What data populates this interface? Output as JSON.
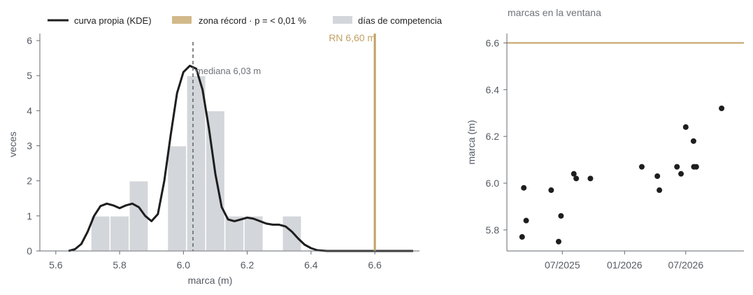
{
  "colors": {
    "kde": "#1e1e1e",
    "record": "#c2a063",
    "record_legend": "#d2b98a",
    "bars": "#d3d6da",
    "median": "#666a70",
    "points": "#1e1e1e",
    "axis": "#666a70",
    "text": "#555b63"
  },
  "chart_data": [
    {
      "type": "bar",
      "legend": {
        "position": "top",
        "entries": [
          {
            "key": "kde",
            "label": "curva propia (KDE)"
          },
          {
            "key": "record",
            "label": "zona récord · p = < 0,01 %"
          },
          {
            "key": "bars",
            "label": "días de competencia"
          }
        ]
      },
      "xlabel": "marca (m)",
      "ylabel": "veces",
      "xlim": [
        5.55,
        6.74
      ],
      "ylim": [
        0,
        6.2
      ],
      "xticks": [
        {
          "v": 5.6,
          "label": "5.6"
        },
        {
          "v": 5.8,
          "label": "5.8"
        },
        {
          "v": 6.0,
          "label": "6.0"
        },
        {
          "v": 6.2,
          "label": "6.2"
        },
        {
          "v": 6.4,
          "label": "6.4"
        },
        {
          "v": 6.6,
          "label": "6.6"
        }
      ],
      "yticks": [
        {
          "v": 0,
          "label": "0"
        },
        {
          "v": 1,
          "label": "1"
        },
        {
          "v": 2,
          "label": "2"
        },
        {
          "v": 3,
          "label": "3"
        },
        {
          "v": 4,
          "label": "4"
        },
        {
          "v": 5,
          "label": "5"
        },
        {
          "v": 6,
          "label": "6"
        }
      ],
      "bin_width": 0.06,
      "bins": [
        {
          "x0": 5.71,
          "count": 1
        },
        {
          "x0": 5.77,
          "count": 1
        },
        {
          "x0": 5.83,
          "count": 2
        },
        {
          "x0": 5.95,
          "count": 3
        },
        {
          "x0": 6.01,
          "count": 5
        },
        {
          "x0": 6.07,
          "count": 4
        },
        {
          "x0": 6.13,
          "count": 1
        },
        {
          "x0": 6.19,
          "count": 1
        },
        {
          "x0": 6.31,
          "count": 1
        }
      ],
      "kde": {
        "x": [
          5.64,
          5.66,
          5.68,
          5.7,
          5.72,
          5.74,
          5.76,
          5.78,
          5.8,
          5.82,
          5.84,
          5.86,
          5.88,
          5.9,
          5.92,
          5.94,
          5.96,
          5.98,
          6.0,
          6.02,
          6.04,
          6.06,
          6.08,
          6.1,
          6.12,
          6.14,
          6.16,
          6.18,
          6.2,
          6.22,
          6.24,
          6.26,
          6.28,
          6.3,
          6.32,
          6.34,
          6.36,
          6.38,
          6.4,
          6.42,
          6.45,
          6.5,
          6.6,
          6.72
        ],
        "y": [
          0.0,
          0.05,
          0.2,
          0.55,
          1.0,
          1.28,
          1.35,
          1.3,
          1.22,
          1.3,
          1.35,
          1.25,
          1.0,
          0.85,
          1.05,
          2.0,
          3.3,
          4.5,
          5.1,
          5.28,
          5.2,
          4.6,
          3.5,
          2.2,
          1.25,
          0.9,
          0.85,
          0.9,
          0.95,
          0.92,
          0.85,
          0.78,
          0.75,
          0.75,
          0.7,
          0.55,
          0.35,
          0.18,
          0.08,
          0.02,
          0.0,
          0.0,
          0.0,
          0.0
        ]
      },
      "median": {
        "value": 6.03,
        "label": "mediana 6,03 m"
      },
      "record": {
        "value": 6.6,
        "label": "RN 6,60 m"
      }
    },
    {
      "type": "scatter",
      "title": "marcas en la ventana",
      "ylabel": "marca (m)",
      "xlim": [
        "2025-01-18",
        "2026-12-20"
      ],
      "ylim": [
        5.71,
        6.64
      ],
      "xticks": [
        {
          "v": "2025-07-01",
          "label": "07/2025"
        },
        {
          "v": "2026-01-01",
          "label": "01/2026"
        },
        {
          "v": "2026-07-01",
          "label": "07/2026"
        }
      ],
      "yticks": [
        {
          "v": 5.8,
          "label": "5.8"
        },
        {
          "v": 6.0,
          "label": "6.0"
        },
        {
          "v": 6.2,
          "label": "6.2"
        },
        {
          "v": 6.4,
          "label": "6.4"
        },
        {
          "v": 6.6,
          "label": "6.6"
        }
      ],
      "record_line": 6.6,
      "points": [
        {
          "x": "2025-03-04",
          "y": 5.77
        },
        {
          "x": "2025-03-09",
          "y": 5.98
        },
        {
          "x": "2025-03-16",
          "y": 5.84
        },
        {
          "x": "2025-05-29",
          "y": 5.97
        },
        {
          "x": "2025-06-20",
          "y": 5.75
        },
        {
          "x": "2025-06-27",
          "y": 5.86
        },
        {
          "x": "2025-08-04",
          "y": 6.04
        },
        {
          "x": "2025-08-11",
          "y": 6.02
        },
        {
          "x": "2025-09-22",
          "y": 6.02
        },
        {
          "x": "2026-02-21",
          "y": 6.07
        },
        {
          "x": "2026-04-08",
          "y": 6.03
        },
        {
          "x": "2026-04-14",
          "y": 5.97
        },
        {
          "x": "2026-06-05",
          "y": 6.07
        },
        {
          "x": "2026-06-17",
          "y": 6.04
        },
        {
          "x": "2026-07-01",
          "y": 6.24
        },
        {
          "x": "2026-07-24",
          "y": 6.18
        },
        {
          "x": "2026-07-25",
          "y": 6.07
        },
        {
          "x": "2026-08-01",
          "y": 6.07
        },
        {
          "x": "2026-10-15",
          "y": 6.32
        }
      ]
    }
  ]
}
